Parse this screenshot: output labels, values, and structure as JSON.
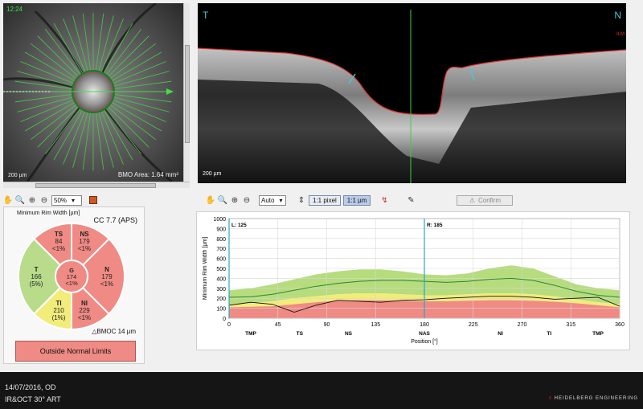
{
  "fundus": {
    "time": "12:24",
    "scale": "200 µm",
    "bmo_area": "BMO Area: 1.64 mm²"
  },
  "left_toolbar": {
    "icons": [
      "hand-icon",
      "zoom-icon",
      "zoom-in-icon",
      "zoom-out-icon"
    ],
    "zoom_value": "50%"
  },
  "mrw": {
    "title": "Minimum Rim Width [µm]",
    "cc": "CC 7.7 (APS)",
    "bmoc": "△BMOC 14 µm",
    "status": "Outside Normal Limits",
    "sectors": [
      {
        "id": "TS",
        "value": "84",
        "pct": "<1%",
        "color": "#f08a84"
      },
      {
        "id": "NS",
        "value": "179",
        "pct": "<1%",
        "color": "#f08a84"
      },
      {
        "id": "N",
        "value": "179",
        "pct": "<1%",
        "color": "#f08a84"
      },
      {
        "id": "NI",
        "value": "229",
        "pct": "<1%",
        "color": "#f08a84"
      },
      {
        "id": "TI",
        "value": "210",
        "pct": "(1%)",
        "color": "#f2ec7a"
      },
      {
        "id": "T",
        "value": "166",
        "pct": "(5%)",
        "color": "#b8dc8a"
      },
      {
        "id": "G",
        "value": "174",
        "pct": "<1%",
        "color": "#f08a84"
      }
    ]
  },
  "oct": {
    "left_label": "T",
    "right_label": "N",
    "ilm_label": "ILM",
    "scale": "200 µm"
  },
  "oct_toolbar": {
    "auto": "Auto",
    "pixel": "1:1 pixel",
    "um": "1:1 µm",
    "confirm": "Confirm"
  },
  "chart_data": {
    "type": "line",
    "title": "",
    "xlabel": "Position [°]",
    "ylabel": "Minimum Rim Width [µm]",
    "xlim": [
      0,
      360
    ],
    "ylim": [
      0,
      1000
    ],
    "x_ticks": [
      0,
      45,
      90,
      135,
      180,
      225,
      270,
      315,
      360
    ],
    "y_ticks": [
      0,
      100,
      200,
      300,
      400,
      500,
      600,
      700,
      800,
      900,
      1000
    ],
    "sector_labels": [
      {
        "label": "TMP",
        "x": 20
      },
      {
        "label": "TS",
        "x": 65
      },
      {
        "label": "NS",
        "x": 110
      },
      {
        "label": "NAS",
        "x": 180
      },
      {
        "label": "NI",
        "x": 250
      },
      {
        "label": "TI",
        "x": 295
      },
      {
        "label": "TMP",
        "x": 340
      }
    ],
    "cursor_L": {
      "label": "L: 125",
      "x": 0
    },
    "cursor_R": {
      "label": "R: 185",
      "x": 180
    },
    "x": [
      0,
      20,
      40,
      60,
      80,
      100,
      120,
      140,
      160,
      180,
      200,
      220,
      240,
      260,
      280,
      300,
      320,
      340,
      360
    ],
    "band_green_upper": [
      280,
      300,
      340,
      390,
      440,
      470,
      490,
      490,
      470,
      440,
      430,
      450,
      500,
      530,
      500,
      420,
      340,
      300,
      280
    ],
    "band_yellow_upper": [
      140,
      150,
      170,
      200,
      220,
      240,
      250,
      250,
      240,
      230,
      230,
      240,
      250,
      250,
      240,
      220,
      190,
      160,
      140
    ],
    "band_red_upper": [
      110,
      115,
      120,
      140,
      160,
      175,
      180,
      180,
      175,
      170,
      170,
      175,
      180,
      180,
      175,
      165,
      150,
      130,
      110
    ],
    "series": [
      {
        "name": "",
        "color": "#2a8a2a",
        "values": [
          210,
          215,
          240,
          280,
          320,
          350,
          370,
          380,
          380,
          370,
          360,
          370,
          390,
          400,
          380,
          330,
          270,
          230,
          210
        ]
      },
      {
        "name": "",
        "color": "#111111",
        "values": [
          130,
          160,
          140,
          60,
          130,
          180,
          170,
          160,
          180,
          185,
          200,
          210,
          220,
          220,
          210,
          190,
          200,
          210,
          120
        ]
      }
    ]
  },
  "bottom": {
    "date_eye": "14/07/2016, OD",
    "mode": "IR&OCT 30° ART",
    "brand_prefix": "≡ ",
    "brand": "HEIDELBERG ENGINEERING"
  }
}
